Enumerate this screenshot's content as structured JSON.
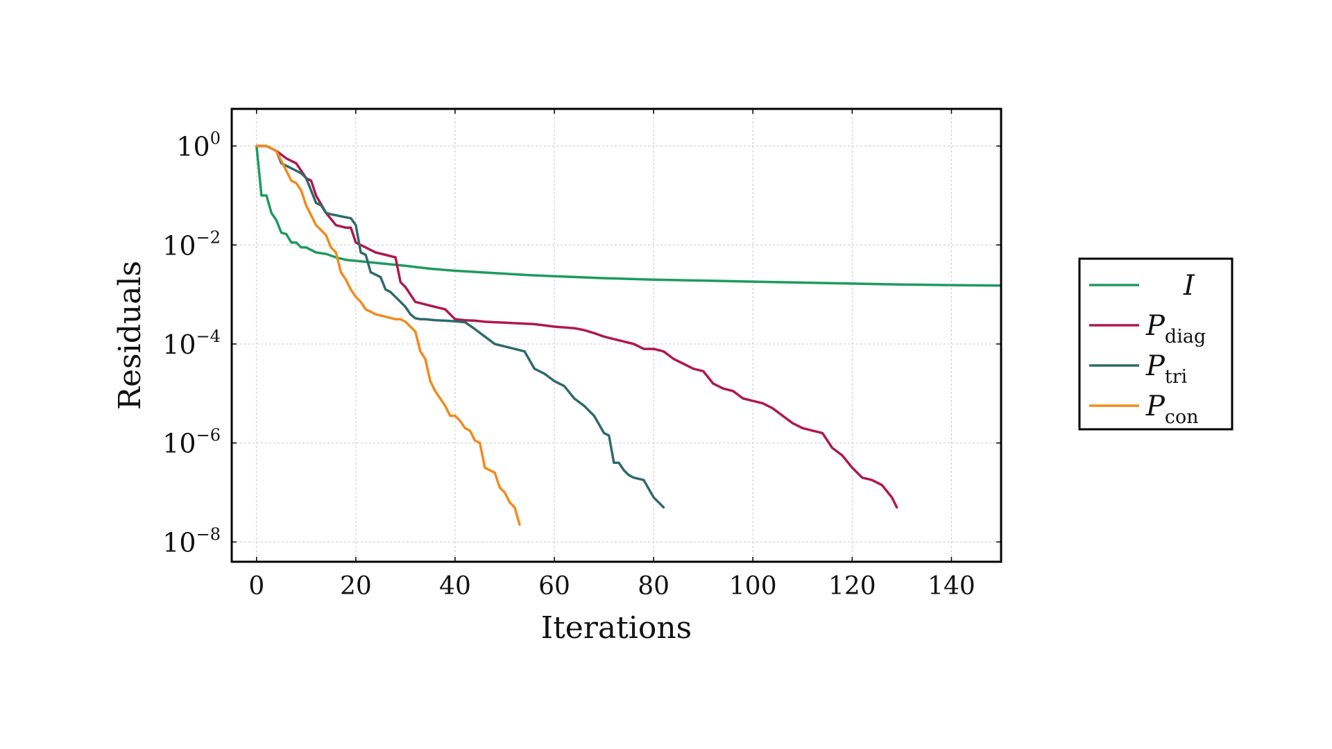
{
  "chart_data": {
    "type": "line",
    "title": "",
    "xlabel": "Iterations",
    "ylabel": "Residuals",
    "xlim": [
      -5,
      150
    ],
    "ylim_log10": [
      -8.4,
      0.75
    ],
    "y_scale": "log",
    "x_ticks": [
      0,
      20,
      40,
      60,
      80,
      100,
      120,
      140
    ],
    "y_ticks": [
      {
        "base": "10",
        "exp": "0"
      },
      {
        "base": "10",
        "exp": "−2"
      },
      {
        "base": "10",
        "exp": "−4"
      },
      {
        "base": "10",
        "exp": "−6"
      },
      {
        "base": "10",
        "exp": "−8"
      }
    ],
    "y_tick_values_log10": [
      0,
      -2,
      -4,
      -6,
      -8
    ],
    "grid": true,
    "legend_position": "outside-right",
    "series": [
      {
        "name": "I",
        "sub": "",
        "color": "#1f9a5e",
        "x": [
          0,
          1,
          2,
          3,
          4,
          5,
          6,
          7,
          8,
          9,
          10,
          12,
          14,
          16,
          18,
          20,
          25,
          30,
          35,
          40,
          45,
          50,
          55,
          60,
          70,
          80,
          90,
          100,
          110,
          120,
          130,
          140,
          150
        ],
        "y_log10": [
          0,
          -1.0,
          -1.0,
          -1.35,
          -1.5,
          -1.75,
          -1.78,
          -1.95,
          -1.95,
          -2.05,
          -2.05,
          -2.15,
          -2.18,
          -2.25,
          -2.3,
          -2.32,
          -2.37,
          -2.42,
          -2.48,
          -2.52,
          -2.55,
          -2.58,
          -2.61,
          -2.63,
          -2.67,
          -2.7,
          -2.72,
          -2.74,
          -2.76,
          -2.78,
          -2.8,
          -2.81,
          -2.82
        ]
      },
      {
        "name": "P",
        "sub": "diag",
        "color": "#b0174e",
        "x": [
          0,
          1,
          2,
          3,
          4,
          6,
          8,
          10,
          11,
          12,
          14,
          16,
          18,
          19,
          20,
          21,
          22,
          23,
          24,
          26,
          28,
          29,
          30,
          32,
          34,
          36,
          38,
          40,
          42,
          44,
          46,
          48,
          50,
          52,
          56,
          60,
          64,
          66,
          68,
          70,
          72,
          74,
          76,
          78,
          80,
          82,
          84,
          86,
          88,
          90,
          92,
          94,
          96,
          98,
          100,
          102,
          104,
          106,
          108,
          110,
          112,
          114,
          116,
          118,
          120,
          122,
          124,
          126,
          128,
          129
        ],
        "y_log10": [
          0,
          0,
          0,
          -0.05,
          -0.1,
          -0.25,
          -0.35,
          -0.65,
          -0.7,
          -1.0,
          -1.35,
          -1.6,
          -1.65,
          -1.65,
          -1.95,
          -2.0,
          -2.05,
          -2.1,
          -2.15,
          -2.2,
          -2.25,
          -2.75,
          -2.85,
          -3.15,
          -3.2,
          -3.25,
          -3.3,
          -3.5,
          -3.52,
          -3.53,
          -3.55,
          -3.56,
          -3.57,
          -3.58,
          -3.6,
          -3.65,
          -3.68,
          -3.72,
          -3.78,
          -3.85,
          -3.9,
          -3.95,
          -4.0,
          -4.1,
          -4.1,
          -4.15,
          -4.3,
          -4.4,
          -4.5,
          -4.55,
          -4.8,
          -4.9,
          -4.95,
          -5.1,
          -5.15,
          -5.2,
          -5.3,
          -5.45,
          -5.6,
          -5.7,
          -5.75,
          -5.8,
          -6.1,
          -6.25,
          -6.5,
          -6.7,
          -6.75,
          -6.85,
          -7.1,
          -7.3
        ]
      },
      {
        "name": "P",
        "sub": "tri",
        "color": "#2e6a6b",
        "x": [
          0,
          2,
          3,
          4,
          5,
          6,
          7,
          8,
          9,
          10,
          11,
          12,
          13,
          14,
          15,
          16,
          17,
          18,
          19,
          20,
          21,
          22,
          23,
          24,
          25,
          26,
          27,
          28,
          29,
          30,
          31,
          32,
          33,
          34,
          36,
          38,
          40,
          42,
          44,
          46,
          48,
          50,
          52,
          54,
          56,
          58,
          60,
          62,
          64,
          66,
          68,
          70,
          71,
          72,
          73,
          74,
          75,
          76,
          78,
          80,
          82
        ],
        "y_log10": [
          0,
          0,
          -0.05,
          -0.1,
          -0.35,
          -0.4,
          -0.45,
          -0.5,
          -0.55,
          -0.65,
          -0.9,
          -1.15,
          -1.2,
          -1.35,
          -1.38,
          -1.4,
          -1.42,
          -1.44,
          -1.46,
          -1.6,
          -2.15,
          -2.2,
          -2.55,
          -2.6,
          -2.65,
          -2.9,
          -2.95,
          -3.05,
          -3.15,
          -3.25,
          -3.4,
          -3.48,
          -3.5,
          -3.5,
          -3.52,
          -3.53,
          -3.54,
          -3.56,
          -3.7,
          -3.85,
          -4.0,
          -4.05,
          -4.1,
          -4.15,
          -4.5,
          -4.6,
          -4.75,
          -4.85,
          -5.1,
          -5.25,
          -5.45,
          -5.8,
          -5.85,
          -6.4,
          -6.4,
          -6.55,
          -6.65,
          -6.7,
          -6.75,
          -7.1,
          -7.3
        ]
      },
      {
        "name": "P",
        "sub": "con",
        "color": "#f28a1b",
        "x": [
          0,
          1,
          2,
          3,
          4,
          5,
          6,
          7,
          8,
          9,
          10,
          11,
          12,
          13,
          14,
          15,
          16,
          17,
          18,
          19,
          20,
          21,
          22,
          24,
          26,
          28,
          29,
          30,
          31,
          32,
          33,
          34,
          35,
          36,
          37,
          38,
          39,
          40,
          41,
          42,
          43,
          44,
          45,
          46,
          47,
          48,
          49,
          50,
          51,
          52,
          53
        ],
        "y_log10": [
          0,
          0,
          0,
          -0.05,
          -0.1,
          -0.3,
          -0.5,
          -0.7,
          -0.75,
          -0.9,
          -1.2,
          -1.4,
          -1.6,
          -1.7,
          -1.8,
          -2.05,
          -2.15,
          -2.55,
          -2.7,
          -2.9,
          -3.05,
          -3.15,
          -3.3,
          -3.4,
          -3.45,
          -3.5,
          -3.5,
          -3.55,
          -3.65,
          -3.75,
          -4.15,
          -4.3,
          -4.75,
          -4.95,
          -5.1,
          -5.25,
          -5.45,
          -5.45,
          -5.55,
          -5.7,
          -5.75,
          -5.95,
          -6.0,
          -6.5,
          -6.55,
          -6.6,
          -6.9,
          -7.0,
          -7.2,
          -7.3,
          -7.65
        ]
      }
    ]
  }
}
